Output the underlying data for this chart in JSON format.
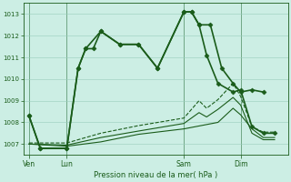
{
  "bg_color": "#cceee4",
  "grid_color": "#99ccbb",
  "line_color": "#1a5c1a",
  "xlabel": "Pression niveau de la mer( hPa )",
  "ylim": [
    1006.5,
    1013.5
  ],
  "yticks": [
    1007,
    1008,
    1009,
    1010,
    1011,
    1012,
    1013
  ],
  "xlim": [
    0,
    14.0
  ],
  "day_labels": [
    "Ven",
    "Lun",
    "Sam",
    "Dim"
  ],
  "day_positions": [
    0.3,
    2.3,
    8.5,
    11.5
  ],
  "day_vlines": [
    0.3,
    2.3,
    8.5,
    11.5
  ],
  "s1_x": [
    0.3,
    0.9,
    2.3,
    2.9,
    3.3,
    3.7,
    4.1,
    5.1,
    6.1,
    7.1,
    8.5,
    8.9,
    9.3,
    9.9,
    10.5,
    11.1,
    11.5,
    12.1,
    12.7
  ],
  "s1_y": [
    1008.3,
    1006.8,
    1006.8,
    1010.5,
    1011.4,
    1011.4,
    1012.2,
    1011.6,
    1011.6,
    1010.5,
    1013.1,
    1013.1,
    1012.5,
    1012.5,
    1010.5,
    1009.8,
    1009.4,
    1009.5,
    1009.4
  ],
  "s2_x": [
    0.3,
    0.9,
    2.3,
    2.9,
    3.3,
    4.1,
    5.1,
    6.1,
    7.1,
    8.5,
    8.9,
    9.3,
    9.7,
    10.3,
    11.1,
    11.5,
    12.1,
    12.7,
    13.3
  ],
  "s2_y": [
    1008.3,
    1006.8,
    1006.8,
    1010.5,
    1011.4,
    1012.2,
    1011.6,
    1011.6,
    1010.5,
    1013.1,
    1013.1,
    1012.5,
    1011.1,
    1009.8,
    1009.4,
    1009.5,
    1007.8,
    1007.5,
    1007.5
  ],
  "s3_x": [
    0.3,
    2.3,
    4.1,
    6.1,
    8.5,
    9.3,
    9.7,
    10.3,
    11.1,
    11.5,
    12.1,
    12.7,
    13.3
  ],
  "s3_y": [
    1007.05,
    1007.05,
    1007.5,
    1007.85,
    1008.2,
    1009.0,
    1008.65,
    1009.05,
    1009.8,
    1009.2,
    1007.8,
    1007.55,
    1007.55
  ],
  "s4_x": [
    0.3,
    2.3,
    4.1,
    6.1,
    8.5,
    9.3,
    9.7,
    10.3,
    11.1,
    11.5,
    12.1,
    12.7,
    13.3
  ],
  "s4_y": [
    1007.0,
    1006.95,
    1007.3,
    1007.6,
    1007.95,
    1008.45,
    1008.25,
    1008.6,
    1009.15,
    1008.8,
    1007.5,
    1007.2,
    1007.2
  ],
  "s5_x": [
    0.3,
    2.3,
    4.1,
    6.1,
    8.5,
    10.3,
    11.1,
    11.5,
    12.1,
    12.7,
    13.3
  ],
  "s5_y": [
    1007.0,
    1006.9,
    1007.1,
    1007.45,
    1007.7,
    1008.0,
    1008.65,
    1008.35,
    1007.7,
    1007.3,
    1007.3
  ]
}
